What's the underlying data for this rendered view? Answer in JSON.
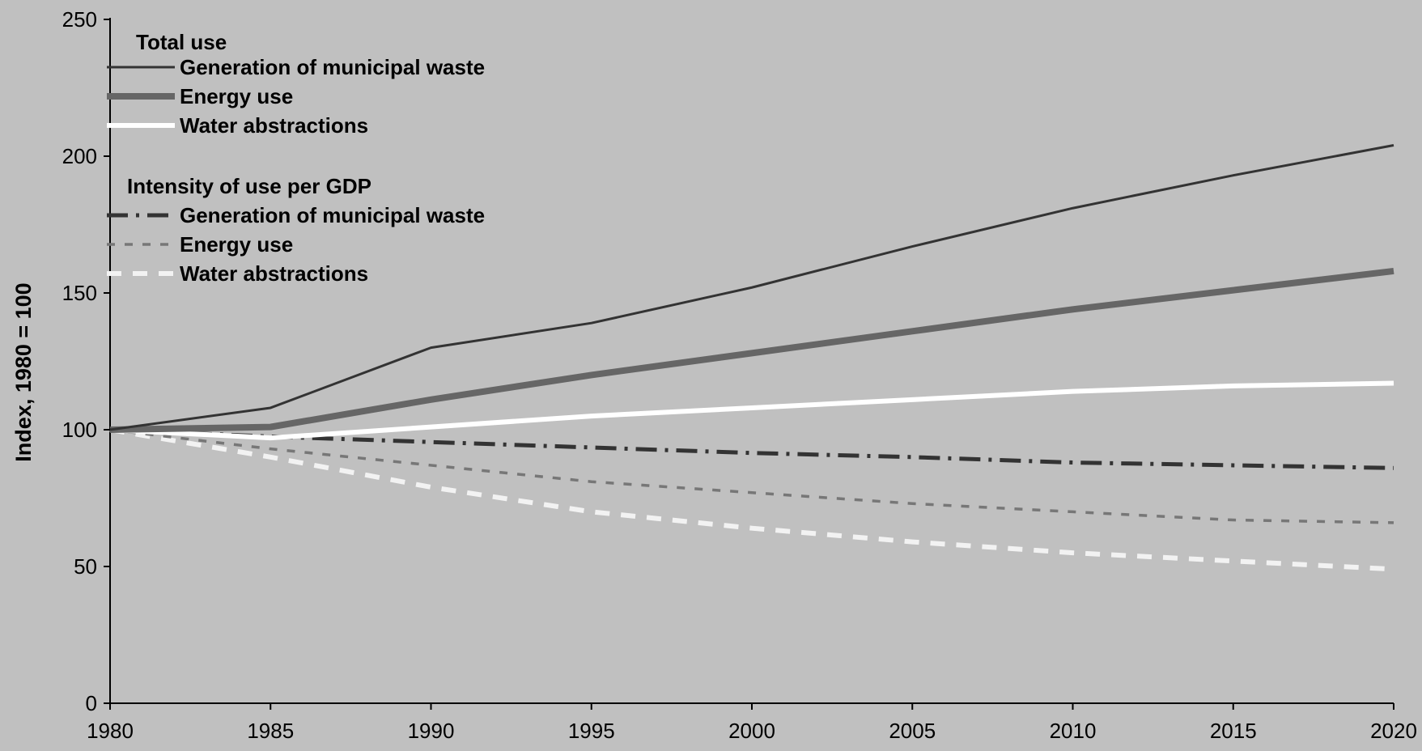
{
  "chart_data": {
    "type": "line",
    "title": "",
    "xlabel": "",
    "ylabel": "Index, 1980 = 100",
    "x": [
      1980,
      1985,
      1990,
      1995,
      2000,
      2005,
      2010,
      2015,
      2020
    ],
    "x_ticks": [
      "1980",
      "1985",
      "1990",
      "1995",
      "2000",
      "2005",
      "2010",
      "2015",
      "2020"
    ],
    "y_ticks": [
      "0",
      "50",
      "100",
      "150",
      "200",
      "250"
    ],
    "xlim": [
      1980,
      2020
    ],
    "ylim": [
      0,
      250
    ],
    "grid": false,
    "legend_position": "top-left",
    "legend_groups": [
      {
        "title": "Total use",
        "items": [
          0,
          1,
          2
        ]
      },
      {
        "title": "Intensity of use per GDP",
        "items": [
          3,
          4,
          5
        ]
      }
    ],
    "series": [
      {
        "name": "Generation of municipal waste",
        "color": "#333333",
        "style": "solid-thin",
        "values": [
          100,
          108,
          130,
          139,
          152,
          167,
          181,
          193,
          204
        ]
      },
      {
        "name": "Energy use",
        "color": "#666666",
        "style": "solid-thick",
        "values": [
          100,
          101,
          111,
          120,
          128,
          136,
          144,
          151,
          158
        ]
      },
      {
        "name": "Water abstractions",
        "color": "#ffffff",
        "style": "solid-medium",
        "values": [
          100,
          97,
          101,
          105,
          108,
          111,
          114,
          116,
          117
        ]
      },
      {
        "name": "Generation of municipal waste",
        "color": "#333333",
        "style": "dash-dot",
        "values": [
          100,
          97.5,
          95.5,
          93.5,
          91.5,
          90,
          88,
          87,
          86
        ]
      },
      {
        "name": "Energy use",
        "color": "#777777",
        "style": "dotted",
        "values": [
          100,
          93,
          87,
          81,
          77,
          73,
          70,
          67,
          66
        ]
      },
      {
        "name": "Water abstractions",
        "color": "#f2f2f2",
        "style": "dashed",
        "values": [
          100,
          90,
          79,
          70,
          64,
          59,
          55,
          52,
          49
        ]
      }
    ]
  }
}
